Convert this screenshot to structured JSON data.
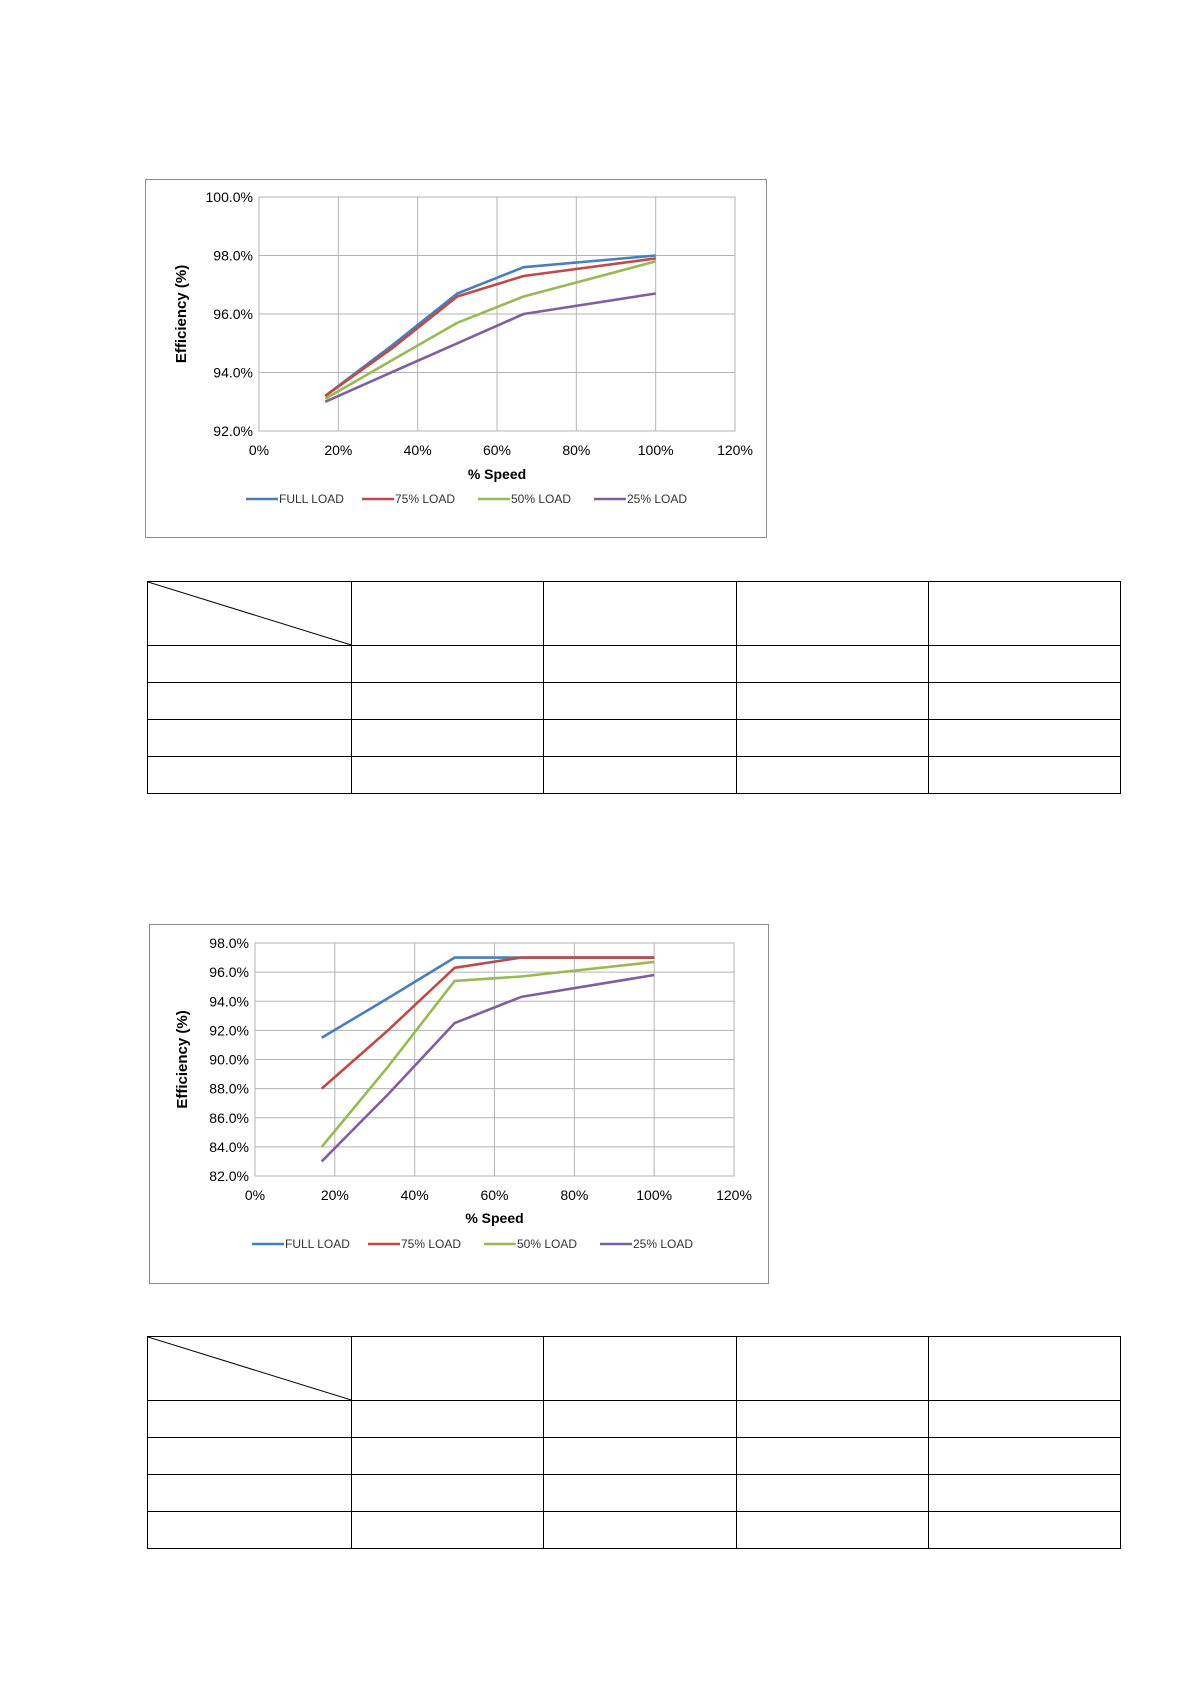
{
  "chart_data": [
    {
      "type": "line",
      "title": "",
      "xlabel": "% Speed",
      "ylabel": "Efficiency (%)",
      "xlim": [
        0,
        120
      ],
      "ylim": [
        92,
        100
      ],
      "x_ticks": [
        "0%",
        "20%",
        "40%",
        "60%",
        "80%",
        "100%",
        "120%"
      ],
      "y_ticks": [
        "92.0%",
        "94.0%",
        "96.0%",
        "98.0%",
        "100.0%"
      ],
      "grid": true,
      "legend_position": "bottom",
      "series": [
        {
          "name": "FULL LOAD",
          "color": "#4a7ebb",
          "x": [
            16.7,
            33.3,
            50,
            66.7,
            100
          ],
          "y": [
            93.2,
            94.9,
            96.7,
            97.6,
            98.0
          ]
        },
        {
          "name": "75% LOAD",
          "color": "#be4b48",
          "x": [
            16.7,
            33.3,
            50,
            66.7,
            100
          ],
          "y": [
            93.2,
            94.8,
            96.6,
            97.3,
            97.9
          ]
        },
        {
          "name": "50% LOAD",
          "color": "#98b954",
          "x": [
            16.7,
            33.3,
            50,
            66.7,
            100
          ],
          "y": [
            93.1,
            94.4,
            95.7,
            96.6,
            97.8
          ]
        },
        {
          "name": "25% LOAD",
          "color": "#7d60a0",
          "x": [
            16.7,
            33.3,
            50,
            66.7,
            100
          ],
          "y": [
            93.0,
            94.0,
            95.0,
            96.0,
            96.7
          ]
        }
      ]
    },
    {
      "type": "line",
      "title": "",
      "xlabel": "% Speed",
      "ylabel": "Efficiency (%)",
      "xlim": [
        0,
        120
      ],
      "ylim": [
        82,
        98
      ],
      "x_ticks": [
        "0%",
        "20%",
        "40%",
        "60%",
        "80%",
        "100%",
        "120%"
      ],
      "y_ticks": [
        "82.0%",
        "84.0%",
        "86.0%",
        "88.0%",
        "90.0%",
        "92.0%",
        "94.0%",
        "96.0%",
        "98.0%"
      ],
      "grid": true,
      "legend_position": "bottom",
      "series": [
        {
          "name": "FULL LOAD",
          "color": "#4a7ebb",
          "x": [
            16.7,
            33.3,
            50,
            66.7,
            100
          ],
          "y": [
            91.5,
            94.2,
            97.0,
            97.0,
            97.0
          ]
        },
        {
          "name": "75% LOAD",
          "color": "#be4b48",
          "x": [
            16.7,
            33.3,
            50,
            66.7,
            100
          ],
          "y": [
            88.0,
            92.0,
            96.3,
            97.0,
            97.0
          ]
        },
        {
          "name": "50% LOAD",
          "color": "#98b954",
          "x": [
            16.7,
            33.3,
            50,
            66.7,
            100
          ],
          "y": [
            84.0,
            89.5,
            95.4,
            95.7,
            96.7
          ]
        },
        {
          "name": "25% LOAD",
          "color": "#7d60a0",
          "x": [
            16.7,
            33.3,
            50,
            66.7,
            100
          ],
          "y": [
            83.0,
            87.6,
            92.5,
            94.3,
            95.8
          ]
        }
      ]
    }
  ],
  "tables": [
    {
      "rows": 5,
      "cols": 5
    },
    {
      "rows": 5,
      "cols": 5
    }
  ]
}
